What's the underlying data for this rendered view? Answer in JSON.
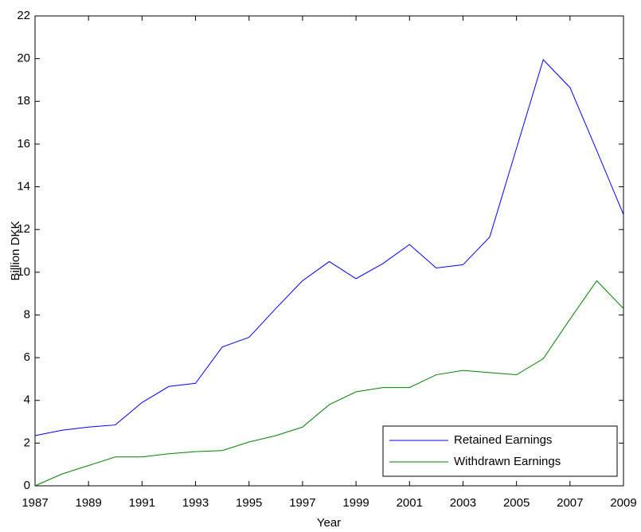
{
  "chart_data": {
    "type": "line",
    "x_label": "Year",
    "y_label": "Billion DKK",
    "x": [
      1987,
      1988,
      1989,
      1990,
      1991,
      1992,
      1993,
      1994,
      1995,
      1996,
      1997,
      1998,
      1999,
      2000,
      2001,
      2002,
      2003,
      2004,
      2005,
      2006,
      2007,
      2008,
      2009
    ],
    "series": [
      {
        "name": "Retained Earnings",
        "color": "#0000ff",
        "values": [
          2.35,
          2.6,
          2.75,
          2.85,
          3.9,
          4.65,
          4.8,
          6.5,
          6.95,
          8.3,
          9.6,
          10.5,
          9.7,
          10.4,
          11.3,
          10.2,
          10.35,
          11.65,
          15.8,
          19.95,
          18.65,
          15.7,
          12.7
        ]
      },
      {
        "name": "Withdrawn Earnings",
        "color": "#008000",
        "values": [
          0,
          0.55,
          0.95,
          1.35,
          1.35,
          1.5,
          1.6,
          1.65,
          2.05,
          2.35,
          2.75,
          3.8,
          4.4,
          4.6,
          4.6,
          5.2,
          5.4,
          5.3,
          5.2,
          5.95,
          7.8,
          9.6,
          8.3
        ]
      }
    ],
    "xlim": [
      1987,
      2009
    ],
    "xticks": [
      1987,
      1989,
      1991,
      1993,
      1995,
      1997,
      1999,
      2001,
      2003,
      2005,
      2007,
      2009
    ],
    "ylim": [
      0,
      22
    ],
    "yticks": [
      0,
      2,
      4,
      6,
      8,
      10,
      12,
      14,
      16,
      18,
      20,
      22
    ],
    "grid": false,
    "legend": "lower right"
  }
}
